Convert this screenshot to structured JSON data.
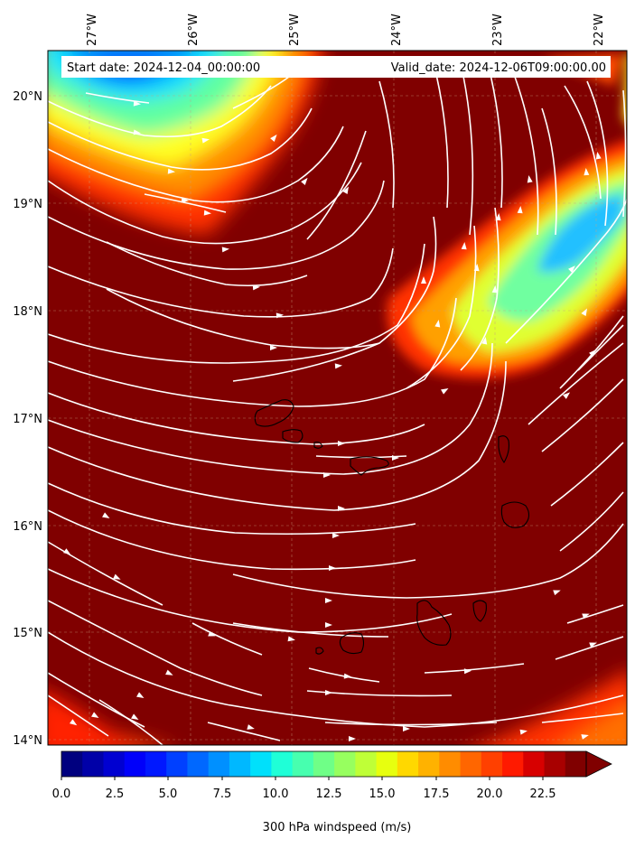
{
  "header": {
    "start_date": "Start date: 2024-12-04_00:00:00",
    "valid_date": "Valid_date: 2024-12-06T09:00:00.00"
  },
  "map": {
    "top_axis_labels": [
      "27°W",
      "26°W",
      "25°W",
      "24°W",
      "23°W",
      "22°W"
    ],
    "left_axis_labels": [
      "20°N",
      "19°N",
      "18°N",
      "17°N",
      "16°N",
      "15°N",
      "14°N"
    ],
    "field_base_color": "#800000",
    "streamline_color": "#ffffff",
    "coastline_color": "#000000",
    "islands": [
      "santo-antao",
      "sao-vicente",
      "santa-luzia",
      "sao-nicolau",
      "sal",
      "boa-vista",
      "maio",
      "santiago",
      "fogo",
      "brava"
    ]
  },
  "colorbar": {
    "tick_labels": [
      "0.0",
      "2.5",
      "5.0",
      "7.5",
      "10.0",
      "12.5",
      "15.0",
      "17.5",
      "20.0",
      "22.5"
    ],
    "label": "300 hPa windspeed (m/s)",
    "colors": [
      "#00007f",
      "#0000a8",
      "#0000d1",
      "#0000fa",
      "#0018ff",
      "#0040ff",
      "#0068ff",
      "#0090ff",
      "#00b8ff",
      "#00e0fb",
      "#1fffd7",
      "#47ffaf",
      "#6fff87",
      "#97ff5f",
      "#bfff37",
      "#e7ff0f",
      "#ffd800",
      "#ffb200",
      "#ff8c00",
      "#ff6600",
      "#ff4000",
      "#ff1a00",
      "#d70000",
      "#a80000",
      "#800000"
    ]
  }
}
